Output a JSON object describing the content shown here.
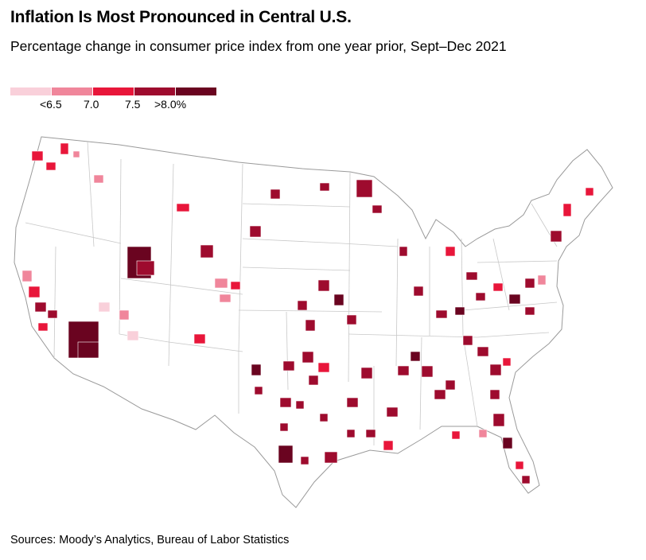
{
  "header": {
    "title": "Inflation Is Most Pronounced in Central U.S.",
    "subtitle": "Percentage change in consumer price index from one year prior, Sept–Dec 2021"
  },
  "legend": {
    "colors": [
      "#f9d0da",
      "#f0869b",
      "#e8163a",
      "#9e0b2e",
      "#6a0420"
    ],
    "labels": [
      "<6.5",
      "7.0",
      "7.5",
      ">8.0%"
    ]
  },
  "map": {
    "type": "choropleth",
    "region": "Contiguous United States",
    "unit": "metro areas",
    "regional_pattern": {
      "highest_bins": [
        "7.5",
        ">8.0%"
      ],
      "highest_region": "Central U.S."
    }
  },
  "footer": {
    "source": "Sources: Moody’s Analytics, Bureau of Labor Statistics"
  }
}
